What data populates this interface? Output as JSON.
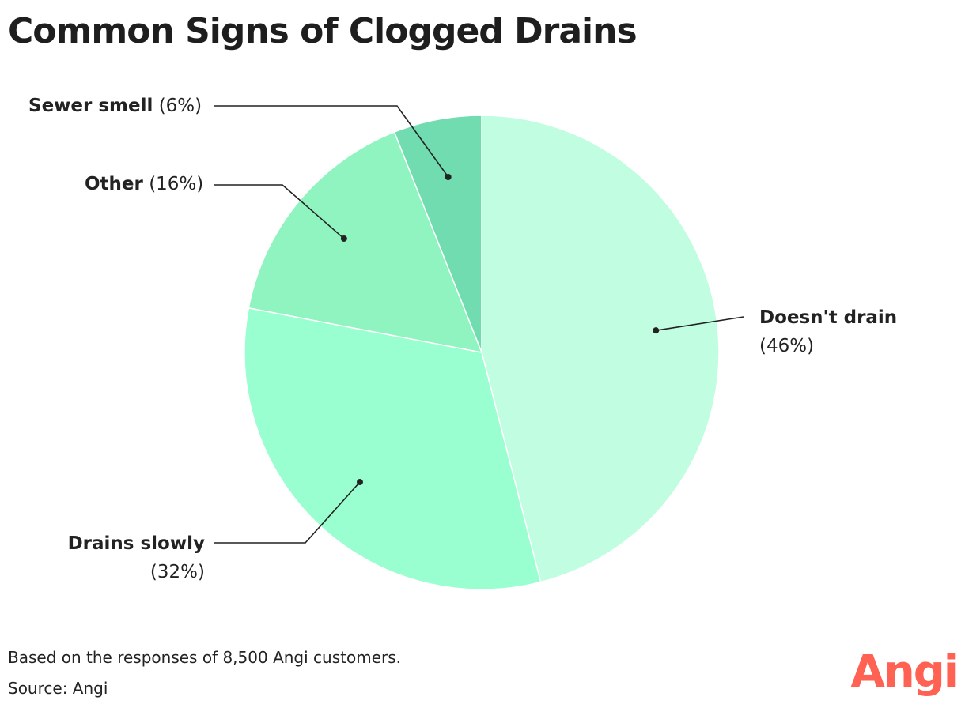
{
  "title": "Common Signs of Clogged Drains",
  "chart_data": {
    "type": "pie",
    "title": "Common Signs of Clogged Drains",
    "slices": [
      {
        "label": "Doesn't drain",
        "value": 46,
        "display": "(46%)",
        "color": "#c0fde1"
      },
      {
        "label": "Drains slowly",
        "value": 32,
        "display": "(32%)",
        "color": "#99fed0"
      },
      {
        "label": "Other",
        "value": 16,
        "display": "(16%)",
        "color": "#8ff4bf"
      },
      {
        "label": "Sewer smell",
        "value": 6,
        "display": "(6%)",
        "color": "#72dcb1"
      }
    ],
    "leader_color": "#222222"
  },
  "footnote": "Based on the responses of 8,500 Angi customers.",
  "source": "Source: Angi",
  "logo": {
    "text": "Angi",
    "color": "#ff6153"
  }
}
